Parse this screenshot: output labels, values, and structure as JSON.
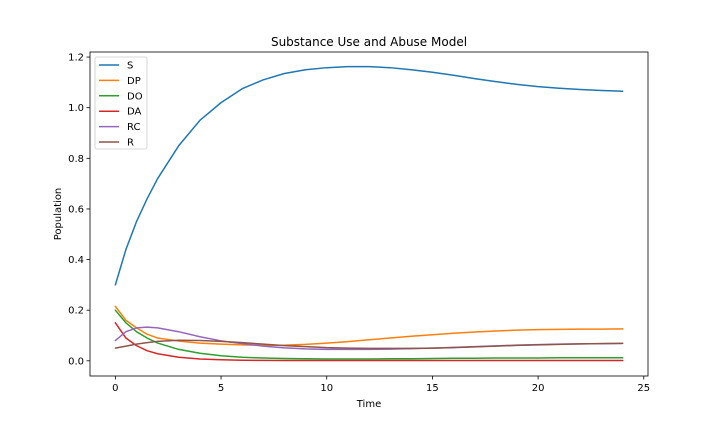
{
  "chart_data": {
    "type": "line",
    "title": "Substance Use and Abuse Model",
    "xlabel": "Time",
    "ylabel": "Population",
    "xlim": [
      -1.2,
      25.2
    ],
    "ylim": [
      -0.06,
      1.22
    ],
    "xticks": [
      0,
      5,
      10,
      15,
      20,
      25
    ],
    "xtick_labels": [
      "0",
      "5",
      "10",
      "15",
      "20",
      "25"
    ],
    "yticks": [
      0.0,
      0.2,
      0.4,
      0.6,
      0.8,
      1.0,
      1.2
    ],
    "ytick_labels": [
      "0.0",
      "0.2",
      "0.4",
      "0.6",
      "0.8",
      "1.0",
      "1.2"
    ],
    "grid": false,
    "legend_position": "top-left",
    "x": [
      0,
      0.5,
      1,
      1.5,
      2,
      3,
      4,
      5,
      6,
      7,
      8,
      9,
      10,
      11,
      12,
      13,
      14,
      15,
      16,
      17,
      18,
      19,
      20,
      21,
      22,
      23,
      24
    ],
    "series": [
      {
        "name": "S",
        "color": "#1f77b4",
        "values": [
          0.3,
          0.44,
          0.55,
          0.64,
          0.72,
          0.85,
          0.95,
          1.02,
          1.075,
          1.11,
          1.135,
          1.15,
          1.158,
          1.162,
          1.162,
          1.158,
          1.15,
          1.14,
          1.128,
          1.115,
          1.103,
          1.092,
          1.083,
          1.077,
          1.072,
          1.068,
          1.065
        ]
      },
      {
        "name": "DP",
        "color": "#ff7f0e",
        "values": [
          0.215,
          0.16,
          0.13,
          0.105,
          0.09,
          0.078,
          0.07,
          0.066,
          0.063,
          0.061,
          0.062,
          0.065,
          0.07,
          0.076,
          0.083,
          0.09,
          0.097,
          0.103,
          0.109,
          0.114,
          0.118,
          0.121,
          0.123,
          0.124,
          0.125,
          0.125,
          0.126
        ]
      },
      {
        "name": "DO",
        "color": "#2ca02c",
        "values": [
          0.2,
          0.15,
          0.115,
          0.09,
          0.07,
          0.045,
          0.03,
          0.02,
          0.014,
          0.011,
          0.009,
          0.008,
          0.007,
          0.007,
          0.007,
          0.008,
          0.008,
          0.009,
          0.01,
          0.01,
          0.011,
          0.011,
          0.011,
          0.012,
          0.012,
          0.012,
          0.012
        ]
      },
      {
        "name": "DA",
        "color": "#d62728",
        "values": [
          0.15,
          0.09,
          0.06,
          0.04,
          0.028,
          0.014,
          0.007,
          0.004,
          0.002,
          0.0015,
          0.001,
          0.001,
          0.001,
          0.001,
          0.001,
          0.001,
          0.001,
          0.001,
          0.001,
          0.001,
          0.001,
          0.001,
          0.001,
          0.001,
          0.001,
          0.001,
          0.001
        ]
      },
      {
        "name": "RC",
        "color": "#9467bd",
        "values": [
          0.08,
          0.115,
          0.13,
          0.133,
          0.13,
          0.115,
          0.095,
          0.079,
          0.068,
          0.058,
          0.051,
          0.047,
          0.045,
          0.045,
          0.045,
          0.046,
          0.048,
          0.05,
          0.053,
          0.056,
          0.059,
          0.062,
          0.064,
          0.066,
          0.067,
          0.068,
          0.069
        ]
      },
      {
        "name": "R",
        "color": "#8c564b",
        "values": [
          0.05,
          0.058,
          0.066,
          0.072,
          0.077,
          0.081,
          0.08,
          0.077,
          0.072,
          0.066,
          0.06,
          0.056,
          0.052,
          0.05,
          0.049,
          0.049,
          0.049,
          0.05,
          0.052,
          0.055,
          0.058,
          0.061,
          0.063,
          0.065,
          0.067,
          0.068,
          0.069
        ]
      }
    ]
  }
}
